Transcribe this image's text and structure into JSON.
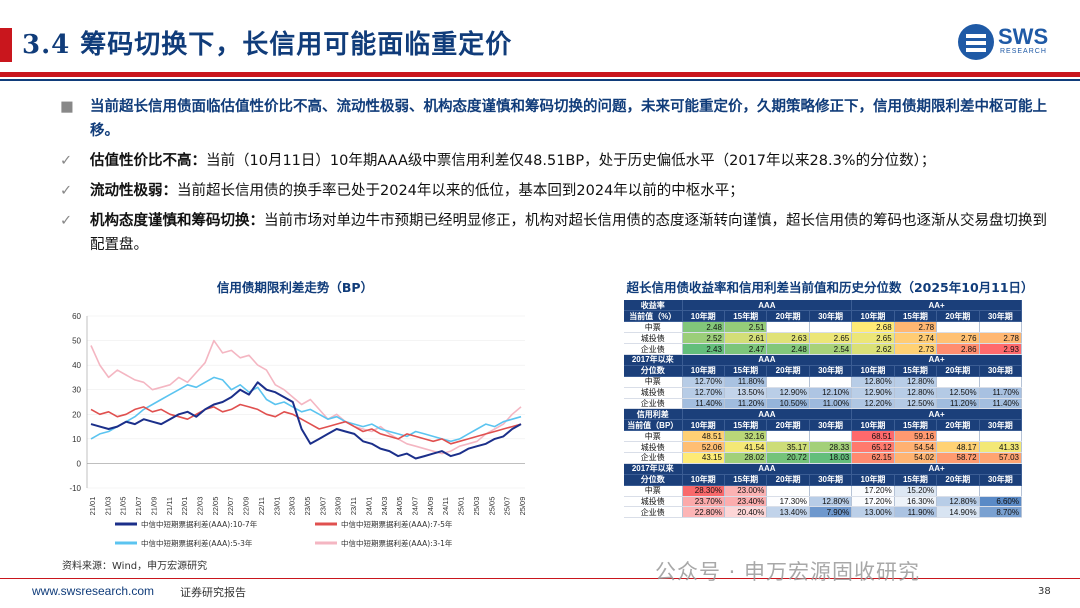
{
  "header": {
    "title": "3.4 筹码切换下，长信用可能面临重定价",
    "logo_text": "SWS",
    "logo_sub": "RESEARCH"
  },
  "bullets": {
    "main_marker": "■",
    "check_marker": "✓",
    "main": "当前超长信用债面临估值性价比不高、流动性极弱、机构态度谨慎和筹码切换的问题，未来可能重定价，久期策略修正下，信用债期限利差中枢可能上移。",
    "items": [
      {
        "kw": "估值性价比不高：",
        "text": "当前（10月11日）10年期AAA级中票信用利差仅48.51BP，处于历史偏低水平（2017年以来28.3%的分位数）；"
      },
      {
        "kw": "流动性极弱：",
        "text": "当前超长信用债的换手率已处于2024年以来的低位，基本回到2024年以前的中枢水平；"
      },
      {
        "kw": "机构态度谨慎和筹码切换：",
        "text": "当前市场对单边牛市预期已经明显修正，机构对超长信用债的态度逐渐转向谨慎，超长信用债的筹码也逐渐从交易盘切换到配置盘。"
      }
    ]
  },
  "chart": {
    "title": "信用债期限利差走势（BP）",
    "source": "资料来源：Wind，申万宏源研究"
  },
  "chart_data": {
    "type": "line",
    "title": "信用债期限利差走势（BP）",
    "ylim": [
      -10,
      60
    ],
    "yticks": [
      -10,
      0,
      10,
      20,
      30,
      40,
      50,
      60
    ],
    "xticks": [
      "21/01",
      "21/03",
      "21/05",
      "21/07",
      "21/09",
      "21/11",
      "22/01",
      "22/03",
      "22/05",
      "22/07",
      "22/09",
      "22/11",
      "23/01",
      "23/03",
      "23/05",
      "23/07",
      "23/09",
      "23/11",
      "24/01",
      "24/03",
      "24/05",
      "24/07",
      "24/09",
      "24/11",
      "25/01",
      "25/03",
      "25/05",
      "25/07",
      "25/09"
    ],
    "legend_position": "bottom",
    "series": [
      {
        "name": "中信中短期票据利差(AAA):10-7年",
        "color": "#1b2f8a",
        "values": [
          16,
          15,
          14,
          15,
          17,
          16,
          18,
          17,
          16,
          18,
          20,
          21,
          19,
          22,
          24,
          25,
          27,
          30,
          28,
          33,
          30,
          29,
          27,
          25,
          14,
          8,
          10,
          12,
          14,
          13,
          12,
          9,
          8,
          6,
          5,
          3,
          4,
          2,
          3,
          4,
          5,
          3,
          4,
          6,
          7,
          8,
          10,
          11,
          14,
          16
        ]
      },
      {
        "name": "中信中短期票据利差(AAA):7-5年",
        "color": "#e0504f",
        "values": [
          22,
          20,
          21,
          19,
          20,
          22,
          23,
          21,
          22,
          20,
          19,
          18,
          20,
          22,
          23,
          21,
          22,
          24,
          23,
          22,
          20,
          19,
          21,
          20,
          18,
          16,
          14,
          15,
          16,
          17,
          15,
          13,
          14,
          12,
          11,
          10,
          12,
          11,
          10,
          9,
          10,
          8,
          9,
          10,
          11,
          12,
          13,
          14,
          15,
          16
        ]
      },
      {
        "name": "中信中短期票据利差(AAA):5-3年",
        "color": "#5bc4f0",
        "values": [
          10,
          12,
          13,
          15,
          17,
          19,
          22,
          24,
          26,
          28,
          30,
          32,
          31,
          33,
          35,
          34,
          30,
          32,
          29,
          31,
          26,
          24,
          25,
          23,
          21,
          22,
          20,
          18,
          19,
          17,
          16,
          15,
          16,
          14,
          13,
          12,
          11,
          13,
          12,
          11,
          10,
          9,
          10,
          12,
          14,
          16,
          15,
          17,
          18,
          19
        ]
      },
      {
        "name": "中信中短期票据利差(AAA):3-1年",
        "color": "#f4b6c2",
        "values": [
          48,
          40,
          35,
          38,
          36,
          34,
          33,
          30,
          31,
          32,
          35,
          33,
          37,
          41,
          50,
          45,
          46,
          43,
          44,
          40,
          38,
          32,
          30,
          27,
          24,
          26,
          22,
          18,
          20,
          17,
          15,
          14,
          13,
          15,
          12,
          10,
          8,
          7,
          6,
          5,
          4,
          5,
          7,
          8,
          9,
          12,
          14,
          16,
          20,
          23
        ]
      }
    ]
  },
  "table": {
    "title": "超长信用债收益率和信用利差当前值和历史分位数（2025年10月11日）",
    "group_aaa": "AAA",
    "group_aap": "AA+",
    "terms": [
      "10年期",
      "15年期",
      "20年期",
      "30年期"
    ],
    "rows": [
      [
        "收益率",
        [
          "AAA",
          "",
          "",
          ""
        ],
        [
          "AA+",
          "",
          "",
          ""
        ]
      ],
      [
        "当前值（%）",
        [
          "10年期",
          "15年期",
          "20年期",
          "30年期"
        ],
        [
          "10年期",
          "15年期",
          "20年期",
          "30年期"
        ]
      ]
    ],
    "sections": [
      {
        "h1": "收益率",
        "h2": "当前值（%）",
        "rows": [
          {
            "label": "中票",
            "vals": [
              "2.48",
              "2.51",
              "",
              "",
              "2.68",
              "2.78",
              "",
              ""
            ]
          },
          {
            "label": "城投债",
            "vals": [
              "2.52",
              "2.61",
              "2.63",
              "2.65",
              "2.65",
              "2.74",
              "2.76",
              "2.78"
            ]
          },
          {
            "label": "企业债",
            "vals": [
              "2.43",
              "2.47",
              "2.48",
              "2.54",
              "2.62",
              "2.73",
              "2.86",
              "2.93"
            ]
          }
        ]
      },
      {
        "h1": "2017年以来",
        "h2": "分位数",
        "rows": [
          {
            "label": "中票",
            "vals": [
              "12.70%",
              "11.80%",
              "",
              "",
              "12.80%",
              "12.80%",
              "",
              ""
            ]
          },
          {
            "label": "城投债",
            "vals": [
              "12.70%",
              "13.50%",
              "12.90%",
              "12.10%",
              "12.90%",
              "12.80%",
              "12.50%",
              "11.70%"
            ]
          },
          {
            "label": "企业债",
            "vals": [
              "11.40%",
              "11.20%",
              "10.50%",
              "11.00%",
              "12.20%",
              "12.50%",
              "11.20%",
              "11.40%"
            ]
          }
        ]
      },
      {
        "h1": "信用利差",
        "h2": "当前值（BP）",
        "rows": [
          {
            "label": "中票",
            "vals": [
              "48.51",
              "32.16",
              "",
              "",
              "68.51",
              "59.16",
              "",
              ""
            ]
          },
          {
            "label": "城投债",
            "vals": [
              "52.06",
              "41.54",
              "35.17",
              "28.33",
              "65.12",
              "54.54",
              "48.17",
              "41.33"
            ]
          },
          {
            "label": "企业债",
            "vals": [
              "43.15",
              "28.02",
              "20.72",
              "18.03",
              "62.15",
              "54.02",
              "58.72",
              "57.03"
            ]
          }
        ]
      },
      {
        "h1": "2017年以来",
        "h2": "分位数",
        "rows": [
          {
            "label": "中票",
            "vals": [
              "28.30%",
              "23.00%",
              "",
              "",
              "17.20%",
              "15.20%",
              "",
              ""
            ]
          },
          {
            "label": "城投债",
            "vals": [
              "23.70%",
              "23.40%",
              "17.30%",
              "12.80%",
              "17.20%",
              "16.30%",
              "12.80%",
              "6.60%"
            ]
          },
          {
            "label": "企业债",
            "vals": [
              "22.80%",
              "20.40%",
              "13.40%",
              "7.90%",
              "13.00%",
              "11.90%",
              "14.90%",
              "8.70%"
            ]
          }
        ]
      }
    ]
  },
  "footer": {
    "url": "www.swsresearch.com",
    "company": "证券研究报告",
    "watermark": "公众号 · 申万宏源固收研究",
    "page": "38"
  }
}
